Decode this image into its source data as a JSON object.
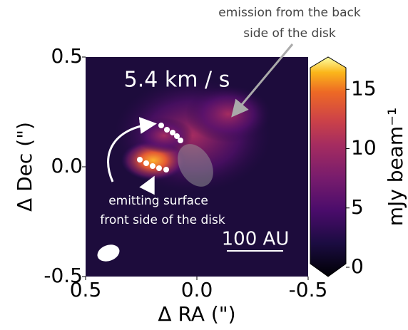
{
  "chart_data": {
    "type": "image",
    "title": "5.4 km / s",
    "xlabel": "Δ RA (\")",
    "ylabel": "Δ Dec (\")",
    "xlim": [
      0.5,
      -0.5
    ],
    "ylim": [
      -0.5,
      0.5
    ],
    "xticks": [
      0.5,
      {
        "value": 0,
        "label": "0.0"
      },
      -0.5
    ],
    "yticks": [
      -0.5,
      {
        "value": 0,
        "label": "0.0"
      },
      0.5
    ],
    "colorbar": {
      "label": "mJy beam⁻¹",
      "clim": [
        0,
        17
      ],
      "ticks": [
        0,
        5,
        10,
        15
      ]
    },
    "annotations": {
      "back": [
        "emission from the back",
        "side of the disk"
      ],
      "front": [
        "emitting surface",
        "front side of the disk"
      ],
      "scale": "100 AU"
    }
  }
}
